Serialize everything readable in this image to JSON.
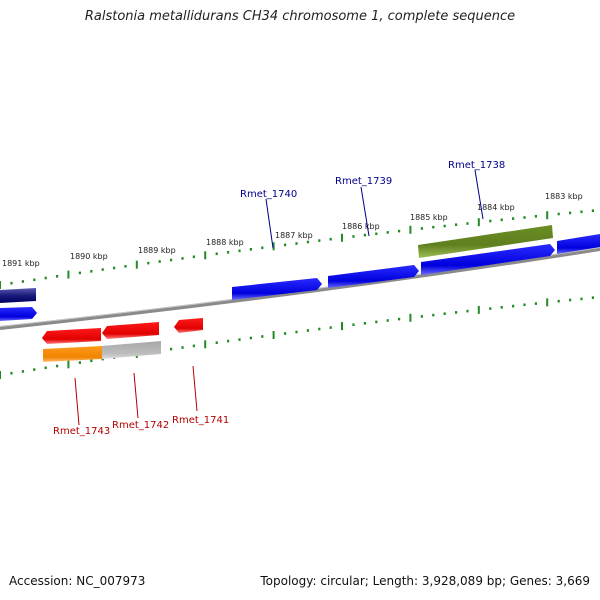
{
  "title": "Ralstonia metallidurans CH34 chromosome 1, complete sequence",
  "footer": {
    "accession": "Accession: NC_007973",
    "stats": "Topology: circular; Length: 3,928,089 bp; Genes: 3,669"
  },
  "colors": {
    "forward": "#0000e6",
    "reverse": "#ee0000",
    "backbone": "#888888",
    "ticks": "#228b22",
    "label_forward": "#00008b",
    "label_reverse": "#b30000",
    "olive": "#6b8e23",
    "orange": "#ff8c00",
    "grey_gene": "#b8b8b8"
  },
  "kbp_labels": [
    "1891 kbp",
    "1890 kbp",
    "1889 kbp",
    "1888 kbp",
    "1887 kbp",
    "1886 kbp",
    "1885 kbp",
    "1884 kbp",
    "1883 kbp"
  ],
  "gene_labels_forward": [
    "Rmet_1740",
    "Rmet_1739",
    "Rmet_1738"
  ],
  "gene_labels_reverse": [
    "Rmet_1743",
    "Rmet_1742",
    "Rmet_1741"
  ]
}
